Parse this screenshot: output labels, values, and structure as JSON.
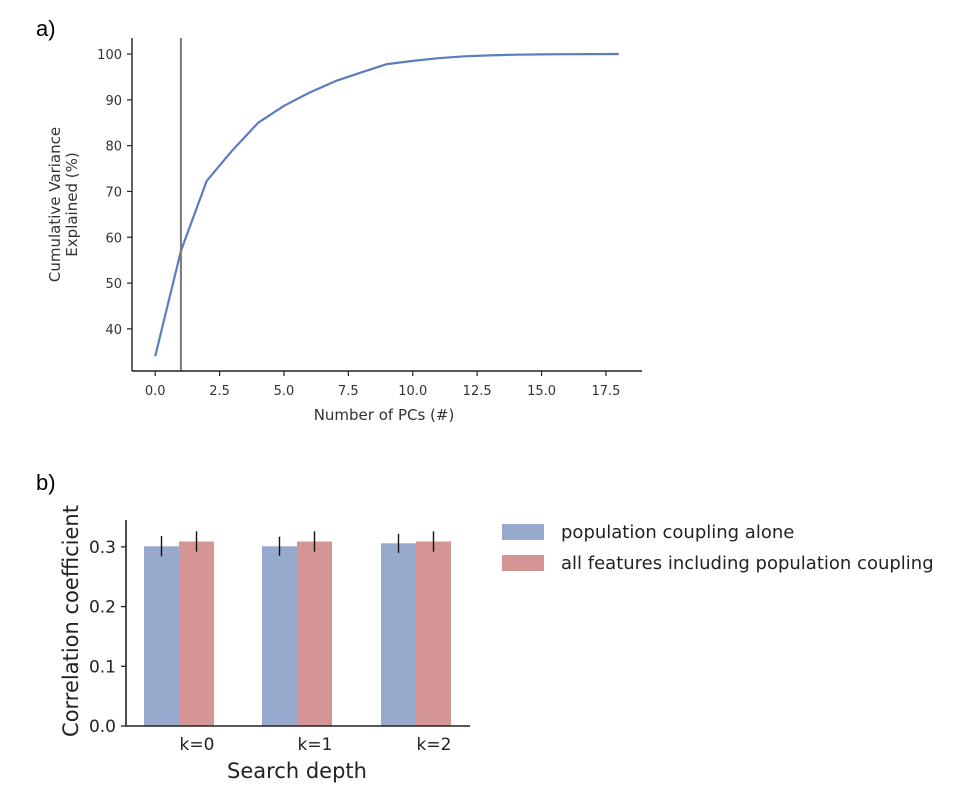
{
  "panels": {
    "a_label": "a)",
    "b_label": "b)"
  },
  "colors": {
    "line": "#5b7dbf",
    "vline": "#7a7a7a",
    "bar_blue": "#97aace",
    "bar_red": "#d49594",
    "axis": "#222222"
  },
  "chart_data": [
    {
      "type": "line",
      "title": "",
      "xlabel": "Number of PCs (#)",
      "ylabel": [
        "Cumulative Variance",
        "Explained (%)"
      ],
      "xlim": [
        -0.9,
        18.9
      ],
      "ylim": [
        30.8,
        103.5
      ],
      "xticks": [
        0,
        2.5,
        5,
        7.5,
        10,
        12.5,
        15,
        17.5
      ],
      "xtick_labels": [
        "0.0",
        "2.5",
        "5.0",
        "7.5",
        "10.0",
        "12.5",
        "15.0",
        "17.5"
      ],
      "yticks": [
        40,
        50,
        60,
        70,
        80,
        90,
        100
      ],
      "ytick_labels": [
        "40",
        "50",
        "60",
        "70",
        "80",
        "90",
        "100"
      ],
      "vline_x": 1,
      "series": [
        {
          "x": [
            0,
            1,
            2,
            3,
            4,
            5,
            6,
            7,
            8,
            9,
            10,
            11,
            12,
            13,
            14,
            15,
            16,
            17,
            18
          ],
          "values": [
            34.0,
            57.0,
            72.3,
            79.0,
            85.0,
            88.7,
            91.6,
            94.1,
            96.0,
            97.8,
            98.5,
            99.1,
            99.5,
            99.7,
            99.85,
            99.92,
            99.96,
            99.99,
            100.0
          ]
        }
      ],
      "grid": false
    },
    {
      "type": "bar",
      "title": "",
      "xlabel": "Search depth",
      "ylabel": "Correlation coefficient",
      "categories": [
        "k=0",
        "k=1",
        "k=2"
      ],
      "ylim": [
        0,
        0.345
      ],
      "yticks": [
        0.0,
        0.1,
        0.2,
        0.3
      ],
      "ytick_labels": [
        "0.0",
        "0.1",
        "0.2",
        "0.3"
      ],
      "series": [
        {
          "name": "population coupling alone",
          "values": [
            0.301,
            0.301,
            0.306
          ],
          "errors": [
            0.017,
            0.016,
            0.016
          ]
        },
        {
          "name": "all features including population coupling",
          "values": [
            0.309,
            0.309,
            0.309
          ],
          "errors": [
            0.017,
            0.017,
            0.017
          ]
        }
      ],
      "legend_position": "right",
      "grid": false
    }
  ]
}
